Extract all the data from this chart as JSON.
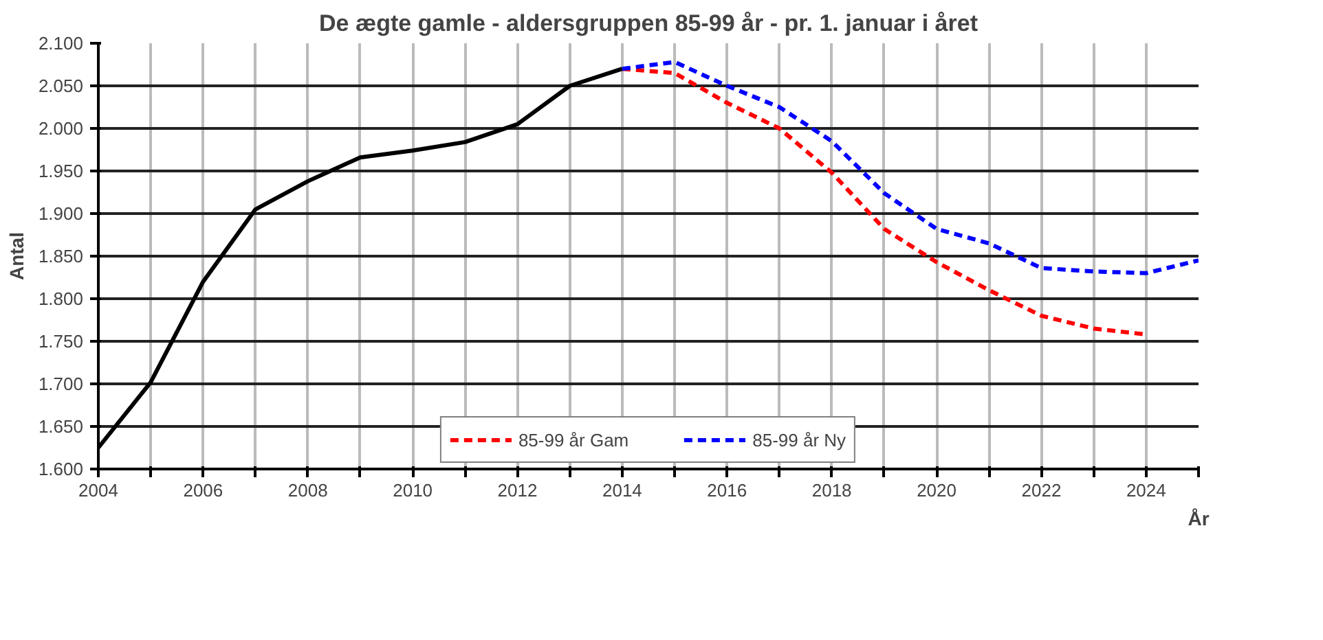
{
  "chart_data": {
    "type": "line",
    "title": "De ægte gamle - aldersgruppen 85-99 år - pr. 1. januar i året",
    "xlabel": "År",
    "ylabel": "Antal",
    "series": [
      {
        "color": "#000000",
        "line_style": "solid",
        "x": [
          2004,
          2005,
          2006,
          2007,
          2008,
          2009,
          2010,
          2011,
          2012,
          2013,
          2014
        ],
        "values": [
          1625,
          1702,
          1820,
          1905,
          1938,
          1966,
          1974,
          1984,
          2005,
          2050,
          2070
        ]
      },
      {
        "name": "85-99 år Gam",
        "color": "#ff0000",
        "line_style": "dashed",
        "x": [
          2014,
          2015,
          2016,
          2017,
          2018,
          2019,
          2020,
          2021,
          2022,
          2023,
          2024
        ],
        "values": [
          2070,
          2065,
          2030,
          2000,
          1948,
          1882,
          1843,
          1810,
          1780,
          1765,
          1758
        ]
      },
      {
        "name": "85-99 år Ny",
        "color": "#0000ff",
        "line_style": "dashed",
        "x": [
          2014,
          2015,
          2016,
          2017,
          2018,
          2019,
          2020,
          2021,
          2022,
          2023,
          2024,
          2025
        ],
        "values": [
          2070,
          2078,
          2050,
          2025,
          1985,
          1924,
          1882,
          1865,
          1836,
          1832,
          1830,
          1845
        ]
      }
    ],
    "xlim": [
      2004,
      2025
    ],
    "xticks": [
      2004,
      {
        "value": 2005,
        "label": null
      },
      2006,
      {
        "value": 2007,
        "label": null
      },
      2008,
      {
        "value": 2009,
        "label": null
      },
      2010,
      {
        "value": 2011,
        "label": null
      },
      2012,
      {
        "value": 2013,
        "label": null
      },
      2014,
      {
        "value": 2015,
        "label": null
      },
      2016,
      {
        "value": 2017,
        "label": null
      },
      2018,
      {
        "value": 2019,
        "label": null
      },
      2020,
      {
        "value": 2021,
        "label": null
      },
      2022,
      {
        "value": 2023,
        "label": null
      },
      2024,
      {
        "value": 2025,
        "label": null
      }
    ],
    "ylim": [
      1600,
      2100
    ],
    "yticks": [
      {
        "value": 1600,
        "label": "1.600"
      },
      {
        "value": 1650,
        "label": "1.650"
      },
      {
        "value": 1700,
        "label": "1.700"
      },
      {
        "value": 1750,
        "label": "1.750"
      },
      {
        "value": 1800,
        "label": "1.800"
      },
      {
        "value": 1850,
        "label": "1.850"
      },
      {
        "value": 1900,
        "label": "1.900"
      },
      {
        "value": 1950,
        "label": "1.950"
      },
      {
        "value": 2000,
        "label": "2.000"
      },
      {
        "value": 2050,
        "label": "2.050"
      },
      {
        "value": 2100,
        "label": "2.100"
      }
    ],
    "grid": true,
    "legend": "bottom",
    "marker": "none"
  }
}
